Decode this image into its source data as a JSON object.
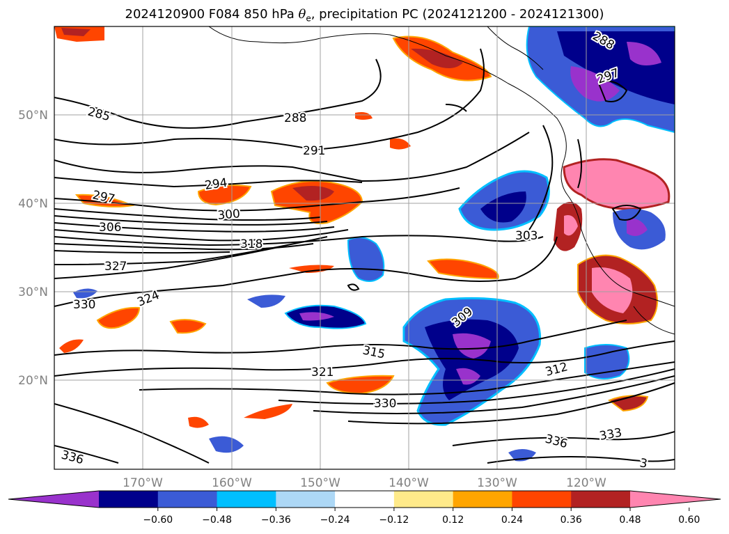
{
  "title": {
    "prefix": "2024120900 F084 850 hPa ",
    "symbol": "θ",
    "subscript": "e",
    "suffix": ", precipitation PC (2024121200 - 2024121300)"
  },
  "axes": {
    "lat_labels": [
      "50°N",
      "40°N",
      "30°N",
      "20°N"
    ],
    "lon_labels": [
      "170°W",
      "160°W",
      "150°W",
      "140°W",
      "130°W",
      "120°W"
    ],
    "tick_color": "#808080"
  },
  "contour_labels": [
    {
      "text": "285"
    },
    {
      "text": "288"
    },
    {
      "text": "291"
    },
    {
      "text": "294"
    },
    {
      "text": "297"
    },
    {
      "text": "300"
    },
    {
      "text": "306"
    },
    {
      "text": "318"
    },
    {
      "text": "327"
    },
    {
      "text": "330"
    },
    {
      "text": "324"
    },
    {
      "text": "303"
    },
    {
      "text": "315"
    },
    {
      "text": "321"
    },
    {
      "text": "330"
    },
    {
      "text": "312"
    },
    {
      "text": "309"
    },
    {
      "text": "333"
    },
    {
      "text": "336"
    },
    {
      "text": "336"
    },
    {
      "text": "288"
    },
    {
      "text": "297"
    },
    {
      "text": "3"
    }
  ],
  "colorbar": {
    "tick_labels": [
      "−0.60",
      "−0.48",
      "−0.36",
      "−0.24",
      "−0.12",
      "0.12",
      "0.24",
      "0.36",
      "0.48",
      "0.60"
    ],
    "colors": [
      "#9932cc",
      "#00008b",
      "#3b5bd6",
      "#00bfff",
      "#add8f6",
      "#ffffff",
      "#ffea8a",
      "#ffa500",
      "#ff4500",
      "#b22222",
      "#ff85b0"
    ],
    "extend": "both"
  }
}
